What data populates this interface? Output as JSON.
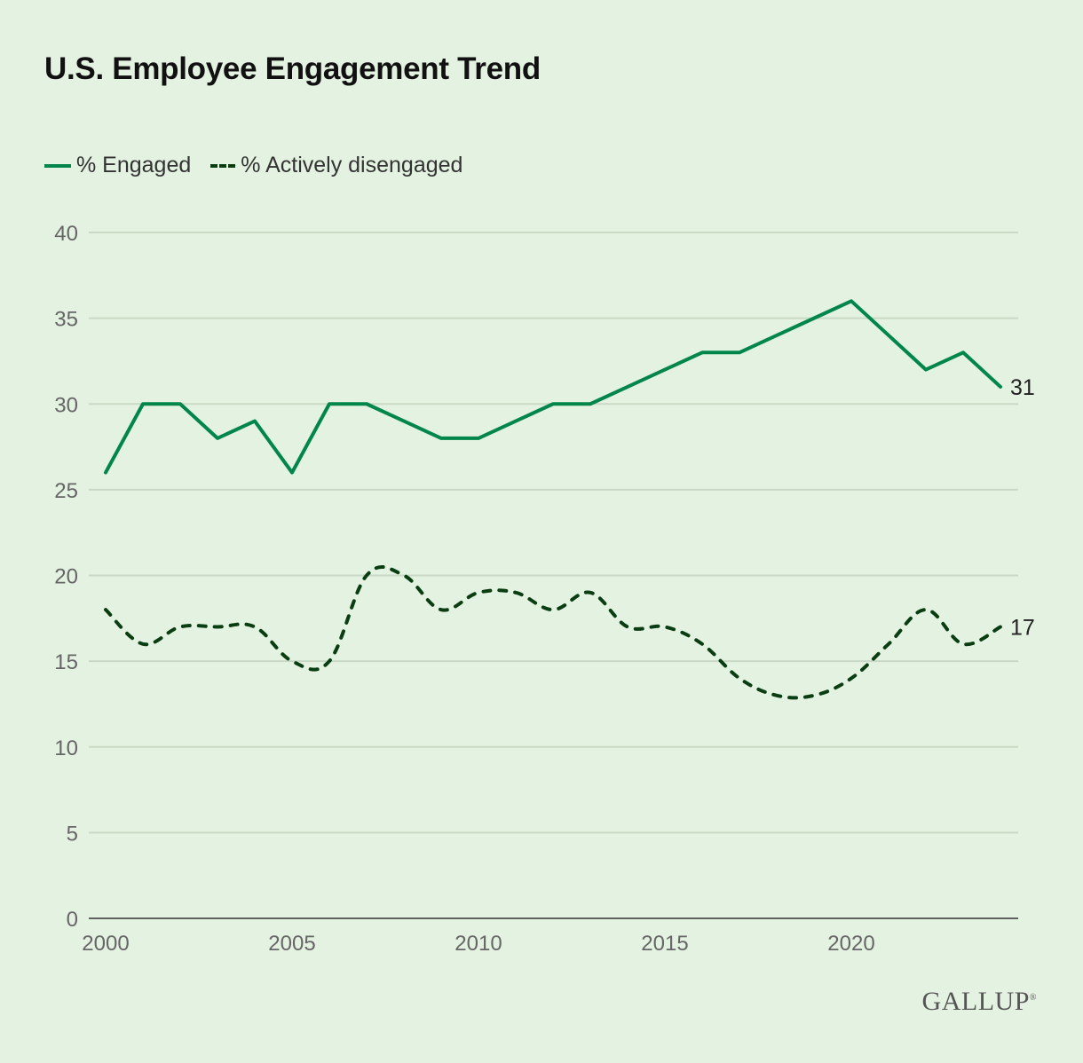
{
  "chart_data": {
    "type": "line",
    "title": "U.S. Employee Engagement Trend",
    "x": [
      2000,
      2001,
      2002,
      2003,
      2004,
      2005,
      2006,
      2007,
      2008,
      2009,
      2010,
      2011,
      2012,
      2013,
      2014,
      2015,
      2016,
      2017,
      2018,
      2019,
      2020,
      2021,
      2022,
      2023,
      2024
    ],
    "series": [
      {
        "name": "% Engaged",
        "color": "#00854a",
        "style": "solid",
        "values": [
          26,
          30,
          30,
          28,
          29,
          26,
          30,
          30,
          29,
          28,
          28,
          29,
          30,
          30,
          31,
          32,
          33,
          33,
          34,
          35,
          36,
          34,
          32,
          33,
          31
        ],
        "end_label": "31"
      },
      {
        "name": "% Actively disengaged",
        "color": "#0a3d12",
        "style": "dashed",
        "values": [
          18,
          16,
          17,
          17,
          17,
          15,
          15,
          20,
          20,
          18,
          19,
          19,
          18,
          19,
          17,
          17,
          16,
          14,
          13,
          13,
          14,
          16,
          18,
          16,
          17
        ],
        "end_label": "17"
      }
    ],
    "ylim": [
      0,
      40
    ],
    "yticks": [
      "0",
      "5",
      "10",
      "15",
      "20",
      "25",
      "30",
      "35",
      "40"
    ],
    "xticks": [
      "2000",
      "2005",
      "2010",
      "2015",
      "2020"
    ],
    "xlim": [
      2000,
      2024
    ],
    "grid": true,
    "legend_position": "top-left",
    "xlabel": "",
    "ylabel": ""
  },
  "source_logo": "GALLUP"
}
